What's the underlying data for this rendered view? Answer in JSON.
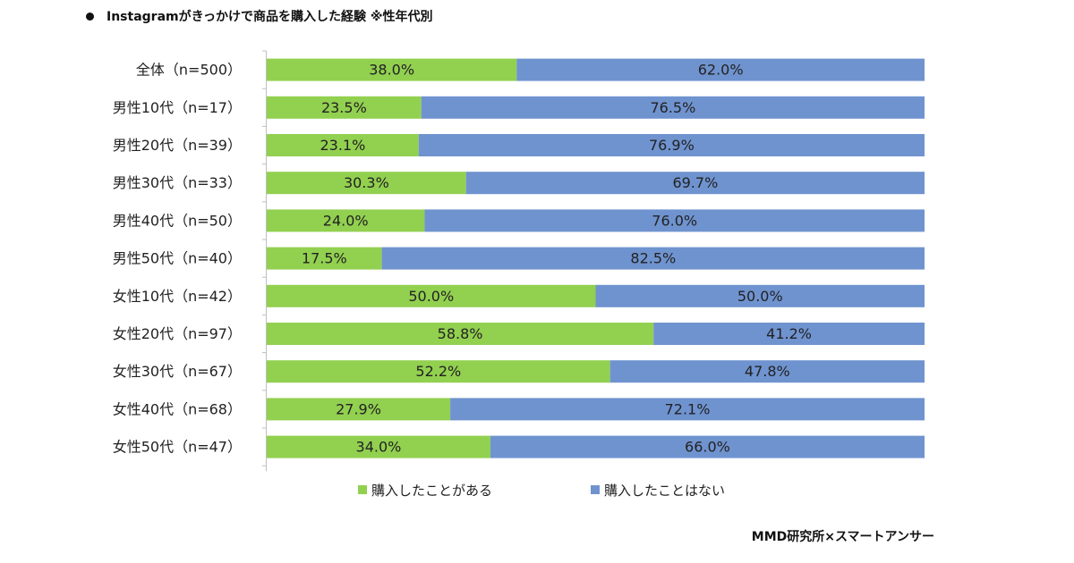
{
  "title": "Instagramがきっかけで商品を購入した経験 ※性年代別",
  "source": "MMD研究所×スマートアンサー",
  "colors": {
    "purchased": "#92d050",
    "not_purchased": "#6f93cf",
    "axis": "#bfbfbf"
  },
  "legend": [
    {
      "label": "購入したことがある",
      "color": "#92d050"
    },
    {
      "label": "購入したことはない",
      "color": "#6f93cf"
    }
  ],
  "chart_data": {
    "type": "bar",
    "orientation": "horizontal",
    "stacked": true,
    "percent_stacked": true,
    "categories": [
      "全体（n=500）",
      "男性10代（n=17）",
      "男性20代（n=39）",
      "男性30代（n=33）",
      "男性40代（n=50）",
      "男性50代（n=40）",
      "女性10代（n=42）",
      "女性20代（n=97）",
      "女性30代（n=67）",
      "女性40代（n=68）",
      "女性50代（n=47）"
    ],
    "series": [
      {
        "name": "購入したことがある",
        "color": "#92d050",
        "values": [
          38.0,
          23.5,
          23.1,
          30.3,
          24.0,
          17.5,
          50.0,
          58.8,
          52.2,
          27.9,
          34.0
        ],
        "labels": [
          "38.0%",
          "23.5%",
          "23.1%",
          "30.3%",
          "24.0%",
          "17.5%",
          "50.0%",
          "58.8%",
          "52.2%",
          "27.9%",
          "34.0%"
        ]
      },
      {
        "name": "購入したことはない",
        "color": "#6f93cf",
        "values": [
          62.0,
          76.5,
          76.9,
          69.7,
          76.0,
          82.5,
          50.0,
          41.2,
          47.8,
          72.1,
          66.0
        ],
        "labels": [
          "62.0%",
          "76.5%",
          "76.9%",
          "69.7%",
          "76.0%",
          "82.5%",
          "50.0%",
          "41.2%",
          "47.8%",
          "72.1%",
          "66.0%"
        ]
      }
    ],
    "xlim": [
      0,
      100
    ],
    "grid": false,
    "legend_position": "bottom"
  }
}
